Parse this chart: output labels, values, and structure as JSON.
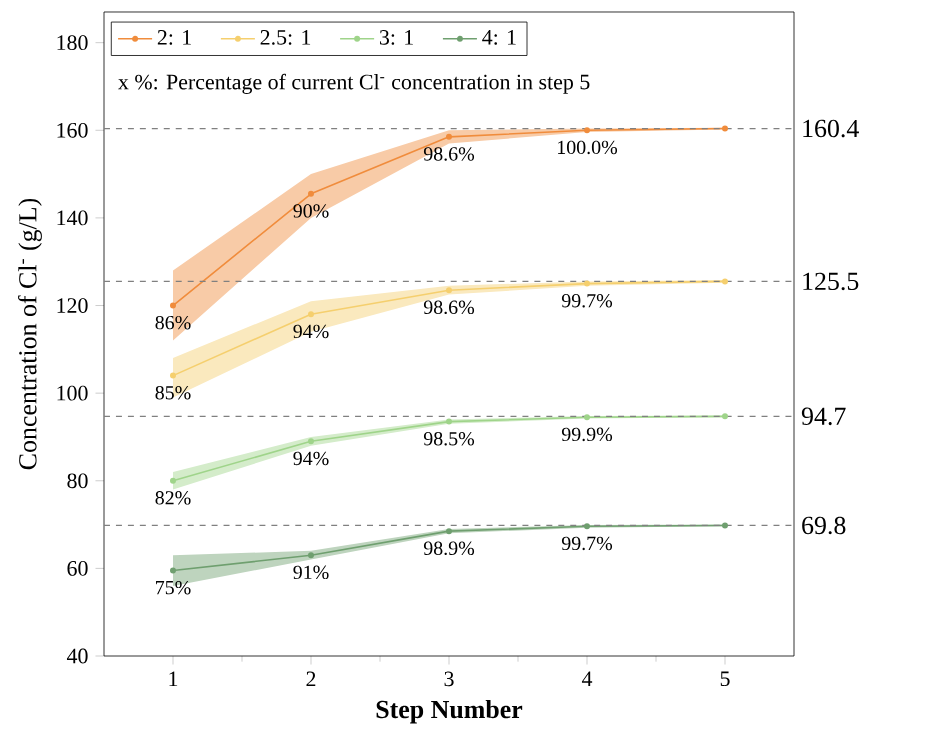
{
  "chart_data": {
    "type": "line",
    "xlabel": "Step Number",
    "ylabel": "Concentration of Cl$^{-}$ (g/L)",
    "x": [
      1,
      2,
      3,
      4,
      5
    ],
    "series": [
      {
        "name": "2: 1",
        "color": "#f08c3c",
        "values": [
          120,
          145.5,
          158.5,
          160,
          160.4
        ],
        "lower": [
          112,
          140,
          157,
          159.6,
          160.2
        ],
        "upper": [
          128,
          150,
          160,
          160.4,
          160.6
        ]
      },
      {
        "name": "2.5: 1",
        "color": "#f5cf6e",
        "values": [
          104,
          118,
          123.5,
          125,
          125.5
        ],
        "lower": [
          99,
          114,
          122.5,
          124.5,
          125.2
        ],
        "upper": [
          108,
          121,
          124.5,
          125.5,
          125.8
        ]
      },
      {
        "name": "3: 1",
        "color": "#9fd48a",
        "values": [
          80,
          89,
          93.5,
          94.5,
          94.7
        ],
        "lower": [
          78,
          88,
          93,
          94.2,
          94.5
        ],
        "upper": [
          82,
          90,
          94,
          94.8,
          94.9
        ]
      },
      {
        "name": "4: 1",
        "color": "#6f9f6f",
        "values": [
          59.5,
          63,
          68.5,
          69.6,
          69.8
        ],
        "lower": [
          56,
          62,
          68,
          69.3,
          69.6
        ],
        "upper": [
          63,
          64,
          69,
          69.9,
          70
        ]
      }
    ],
    "xlim": [
      0.5,
      5.5
    ],
    "xticks": [
      1,
      2,
      3,
      4,
      5
    ],
    "ylim": [
      40,
      187
    ],
    "yticks": [
      40,
      60,
      80,
      100,
      120,
      140,
      160,
      180
    ],
    "ref_lines": [
      {
        "axis": "y",
        "value": 160.4,
        "label": "160.4",
        "color": "#808080",
        "line_style": "dashed"
      },
      {
        "axis": "y",
        "value": 125.5,
        "label": "125.5",
        "color": "#808080",
        "line_style": "dashed"
      },
      {
        "axis": "y",
        "value": 94.7,
        "label": "94.7",
        "color": "#808080",
        "line_style": "dashed"
      },
      {
        "axis": "y",
        "value": 69.8,
        "label": "69.8",
        "color": "#808080",
        "line_style": "dashed"
      }
    ],
    "annotations": [
      "x %: Percentage of current Cl$^{-}$ concentration in step 5",
      {
        "text": "86%",
        "x": 1,
        "y": 120
      },
      {
        "text": "90%",
        "x": 2,
        "y": 145.5
      },
      {
        "text": "98.6%",
        "x": 3,
        "y": 158.5
      },
      {
        "text": "100.0%",
        "x": 4,
        "y": 160
      },
      {
        "text": "85%",
        "x": 1,
        "y": 104
      },
      {
        "text": "94%",
        "x": 2,
        "y": 118
      },
      {
        "text": "98.6%",
        "x": 3,
        "y": 123.5
      },
      {
        "text": "99.7%",
        "x": 4,
        "y": 125
      },
      {
        "text": "82%",
        "x": 1,
        "y": 80
      },
      {
        "text": "94%",
        "x": 2,
        "y": 89
      },
      {
        "text": "98.5%",
        "x": 3,
        "y": 93.5
      },
      {
        "text": "99.9%",
        "x": 4,
        "y": 94.5
      },
      {
        "text": "75%",
        "x": 1,
        "y": 59.5
      },
      {
        "text": "91%",
        "x": 2,
        "y": 63
      },
      {
        "text": "98.9%",
        "x": 3,
        "y": 68.5
      },
      {
        "text": "99.7%",
        "x": 4,
        "y": 69.6
      }
    ],
    "legend": "top",
    "marker": "circle",
    "line_style": "solid",
    "grid": false
  }
}
